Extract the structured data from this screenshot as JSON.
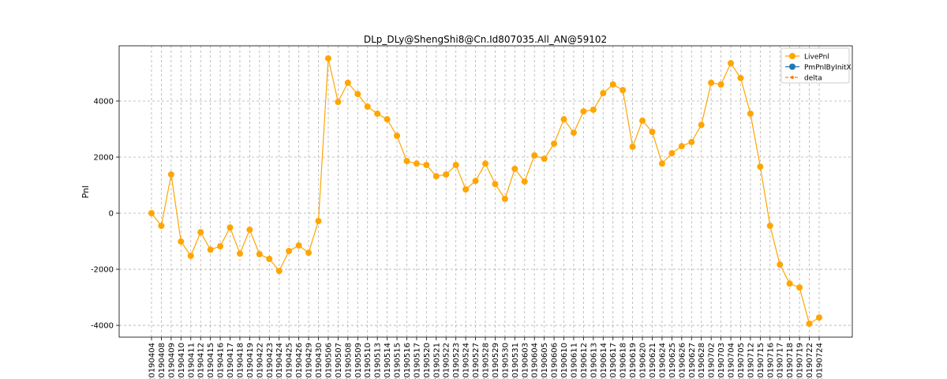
{
  "chart_data": {
    "type": "line",
    "title": "DLp_DLy@ShengShi8@Cn.Id807035.All_AN@59102",
    "ylabel": "Pnl",
    "categories": [
      "20190404",
      "20190408",
      "20190409",
      "20190410",
      "20190411",
      "20190412",
      "20190415",
      "20190416",
      "20190417",
      "20190418",
      "20190419",
      "20190422",
      "20190423",
      "20190424",
      "20190425",
      "20190426",
      "20190429",
      "20190430",
      "20190506",
      "20190507",
      "20190508",
      "20190509",
      "20190510",
      "20190513",
      "20190514",
      "20190515",
      "20190516",
      "20190517",
      "20190520",
      "20190521",
      "20190522",
      "20190523",
      "20190524",
      "20190527",
      "20190528",
      "20190529",
      "20190530",
      "20190531",
      "20190603",
      "20190604",
      "20190605",
      "20190606",
      "20190610",
      "20190611",
      "20190612",
      "20190613",
      "20190614",
      "20190617",
      "20190618",
      "20190619",
      "20190620",
      "20190621",
      "20190624",
      "20190625",
      "20190626",
      "20190627",
      "20190628",
      "20190702",
      "20190703",
      "20190704",
      "20190705",
      "20190712",
      "20190715",
      "20190716",
      "20190717",
      "20190718",
      "20190719",
      "20190722",
      "20190724"
    ],
    "series": [
      {
        "name": "LivePnl",
        "color": "#ffa500",
        "marker": "circle",
        "values": [
          0,
          -450,
          1380,
          -1010,
          -1520,
          -680,
          -1300,
          -1180,
          -510,
          -1440,
          -590,
          -1460,
          -1630,
          -2060,
          -1350,
          -1150,
          -1410,
          -280,
          5520,
          3970,
          4650,
          4250,
          3800,
          3550,
          3350,
          2760,
          1860,
          1770,
          1720,
          1320,
          1380,
          1720,
          850,
          1150,
          1770,
          1040,
          510,
          1580,
          1130,
          2060,
          1940,
          2480,
          3350,
          2870,
          3630,
          3690,
          4280,
          4590,
          4390,
          2370,
          3300,
          2900,
          1770,
          2140,
          2390,
          2540,
          3150,
          4650,
          4590,
          5350,
          4820,
          3550,
          1660,
          -450,
          -1830,
          -2510,
          -2650,
          -3940,
          -3720
        ]
      },
      {
        "name": "PmPnlByInitX",
        "color": "#1f77b4",
        "marker": "circle",
        "values": [
          null,
          null,
          null,
          null,
          null,
          null,
          null,
          null,
          null,
          null,
          null,
          null,
          null,
          null,
          null,
          null,
          null,
          null,
          null,
          null,
          null,
          null,
          null,
          null,
          null,
          null,
          null,
          null,
          null,
          null,
          null,
          null,
          null,
          null,
          null,
          null,
          null,
          null,
          null,
          null,
          null,
          null,
          null,
          null,
          null,
          null,
          null,
          null,
          null,
          null,
          null,
          null,
          null,
          null,
          null,
          null,
          null,
          null,
          null,
          null,
          null,
          null,
          null,
          null,
          null,
          null,
          null,
          null,
          null
        ]
      },
      {
        "name": "delta",
        "color": "#ff7f0e",
        "marker": "small-dashed",
        "values": [
          null,
          null,
          null,
          null,
          null,
          null,
          null,
          null,
          null,
          null,
          null,
          null,
          null,
          null,
          null,
          null,
          null,
          null,
          null,
          null,
          null,
          null,
          null,
          null,
          null,
          null,
          null,
          null,
          null,
          null,
          null,
          null,
          null,
          null,
          null,
          null,
          null,
          null,
          null,
          null,
          null,
          null,
          null,
          null,
          null,
          null,
          null,
          null,
          null,
          null,
          null,
          null,
          null,
          null,
          null,
          null,
          null,
          null,
          null,
          null,
          null,
          null,
          null,
          null,
          null,
          null,
          null,
          null,
          null
        ]
      }
    ],
    "ylim": [
      -4420,
      5970
    ],
    "yticks": [
      -4000,
      -2000,
      0,
      2000,
      4000
    ],
    "grid": true,
    "legend": "upper right"
  }
}
